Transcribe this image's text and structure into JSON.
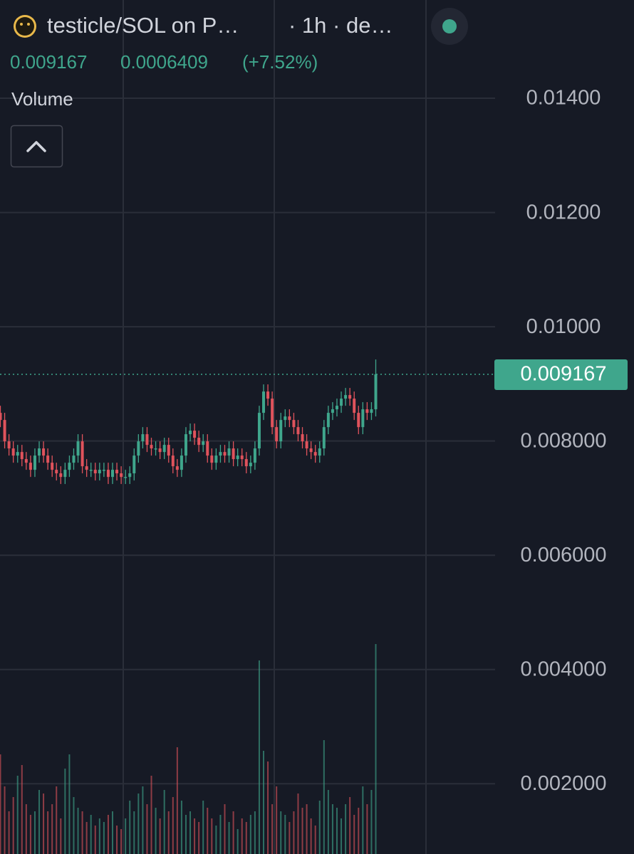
{
  "chart_data": {
    "type": "candlestick",
    "title": "testicle/SOL on P…",
    "subtitle": "· 1h · de…",
    "volume_label": "Volume",
    "change": 0.0006409,
    "change_percent": {
      "value": 7.52,
      "label": "(+7.52%)"
    },
    "up_color": "#3fa68c",
    "down_color": "#e0535c",
    "grid": true,
    "ylim": [
      0.00077,
      0.01572
    ],
    "yticks": [
      {
        "value": 0.014,
        "label": "0.01400"
      },
      {
        "value": 0.012,
        "label": "0.01200"
      },
      {
        "value": 0.01,
        "label": "0.01000"
      },
      {
        "value": 0.008,
        "label": "0.008000"
      },
      {
        "value": 0.006,
        "label": "0.006000"
      },
      {
        "value": 0.004,
        "label": "0.004000"
      },
      {
        "value": 0.002,
        "label": "0.002000"
      }
    ],
    "open": [
      0.008493,
      0.008368,
      0.007994,
      0.00787,
      0.007745,
      0.007807,
      0.007683,
      0.00762,
      0.007496,
      0.007745,
      0.00787,
      0.007745,
      0.00762,
      0.007496,
      0.007434,
      0.007371,
      0.007496,
      0.00762,
      0.007745,
      0.007994,
      0.007558,
      0.007496,
      0.007496,
      0.007434,
      0.007496,
      0.007496,
      0.007371,
      0.007496,
      0.007434,
      0.007371,
      0.007371,
      0.007434,
      0.007745,
      0.007994,
      0.008119,
      0.007932,
      0.00787,
      0.00787,
      0.007807,
      0.007932,
      0.007745,
      0.007558,
      0.007496,
      0.007745,
      0.008119,
      0.008181,
      0.008057,
      0.007932,
      0.007994,
      0.007745,
      0.00762,
      0.007745,
      0.007807,
      0.007745,
      0.00787,
      0.007683,
      0.007745,
      0.007683,
      0.007558,
      0.00762,
      0.00787,
      0.008493,
      0.008866,
      0.008742,
      0.008243,
      0.007994,
      0.008368,
      0.00843,
      0.008368,
      0.008243,
      0.008119,
      0.007994,
      0.00787,
      0.007807,
      0.007745,
      0.00787,
      0.008243,
      0.008493,
      0.008555,
      0.008617,
      0.008742,
      0.008804,
      0.008742,
      0.008493,
      0.008243,
      0.008555,
      0.008493,
      0.008555
    ],
    "high": [
      0.008617,
      0.008493,
      0.008119,
      0.007994,
      0.007932,
      0.007932,
      0.007807,
      0.007745,
      0.00787,
      0.007994,
      0.007994,
      0.00787,
      0.007745,
      0.00762,
      0.007558,
      0.00762,
      0.007745,
      0.00787,
      0.008119,
      0.008119,
      0.007683,
      0.00762,
      0.00762,
      0.00762,
      0.00762,
      0.00762,
      0.00762,
      0.00762,
      0.007558,
      0.007496,
      0.007558,
      0.00787,
      0.008119,
      0.008243,
      0.008243,
      0.008057,
      0.007994,
      0.007994,
      0.008057,
      0.008057,
      0.00787,
      0.007683,
      0.00787,
      0.008243,
      0.008306,
      0.008306,
      0.008181,
      0.008119,
      0.008119,
      0.00787,
      0.00787,
      0.007932,
      0.007932,
      0.007994,
      0.007994,
      0.00787,
      0.00787,
      0.007807,
      0.007745,
      0.007994,
      0.008617,
      0.008991,
      0.008991,
      0.008866,
      0.008368,
      0.008493,
      0.008555,
      0.008555,
      0.008493,
      0.008368,
      0.008243,
      0.008119,
      0.007994,
      0.007932,
      0.007994,
      0.008368,
      0.008617,
      0.00868,
      0.008742,
      0.008866,
      0.008929,
      0.008929,
      0.008866,
      0.008617,
      0.00868,
      0.00868,
      0.00868,
      0.009427
    ],
    "low": [
      0.008243,
      0.00787,
      0.007745,
      0.00762,
      0.00762,
      0.007558,
      0.007496,
      0.007371,
      0.007371,
      0.00762,
      0.00762,
      0.007496,
      0.007371,
      0.007309,
      0.007247,
      0.007247,
      0.007371,
      0.007496,
      0.00762,
      0.007434,
      0.007371,
      0.007371,
      0.007309,
      0.007309,
      0.007371,
      0.007247,
      0.007247,
      0.007309,
      0.007247,
      0.007247,
      0.007247,
      0.007309,
      0.00762,
      0.00787,
      0.007807,
      0.007745,
      0.007745,
      0.007683,
      0.007683,
      0.00762,
      0.007434,
      0.007371,
      0.007371,
      0.00762,
      0.007994,
      0.007932,
      0.007807,
      0.007807,
      0.00762,
      0.007496,
      0.007496,
      0.00762,
      0.00762,
      0.00762,
      0.007558,
      0.007558,
      0.007558,
      0.007434,
      0.007434,
      0.007496,
      0.007745,
      0.008368,
      0.008617,
      0.008119,
      0.00787,
      0.00787,
      0.008243,
      0.008243,
      0.008119,
      0.007994,
      0.00787,
      0.007745,
      0.007683,
      0.00762,
      0.00762,
      0.007745,
      0.008119,
      0.008368,
      0.00843,
      0.008493,
      0.008617,
      0.008617,
      0.008368,
      0.008119,
      0.008119,
      0.008368,
      0.008368,
      0.00843
    ],
    "close": [
      0.008368,
      0.007994,
      0.00787,
      0.007745,
      0.007807,
      0.007683,
      0.00762,
      0.007496,
      0.007745,
      0.00787,
      0.007745,
      0.00762,
      0.007496,
      0.007434,
      0.007371,
      0.007496,
      0.00762,
      0.007745,
      0.007994,
      0.007558,
      0.007496,
      0.007496,
      0.007434,
      0.007496,
      0.007496,
      0.007371,
      0.007496,
      0.007434,
      0.007371,
      0.007371,
      0.007434,
      0.007745,
      0.007994,
      0.008119,
      0.007932,
      0.00787,
      0.00787,
      0.007807,
      0.007932,
      0.007745,
      0.007558,
      0.007496,
      0.007745,
      0.008119,
      0.008181,
      0.008057,
      0.007932,
      0.007994,
      0.007745,
      0.00762,
      0.007745,
      0.007807,
      0.007745,
      0.00787,
      0.007683,
      0.007745,
      0.007683,
      0.007558,
      0.00762,
      0.00787,
      0.008493,
      0.008866,
      0.008742,
      0.008243,
      0.007994,
      0.008368,
      0.00843,
      0.008368,
      0.008243,
      0.008119,
      0.007994,
      0.00787,
      0.007807,
      0.007745,
      0.00787,
      0.008243,
      0.008493,
      0.008555,
      0.008617,
      0.008742,
      0.008804,
      0.008742,
      0.008493,
      0.008243,
      0.008555,
      0.008493,
      0.008555,
      0.009167
    ],
    "volume": [
      140,
      95,
      60,
      80,
      110,
      125,
      70,
      55,
      60,
      90,
      85,
      60,
      70,
      95,
      50,
      120,
      140,
      80,
      65,
      60,
      45,
      55,
      40,
      50,
      45,
      55,
      60,
      40,
      35,
      50,
      75,
      60,
      85,
      95,
      70,
      110,
      65,
      50,
      90,
      60,
      80,
      150,
      75,
      55,
      60,
      50,
      45,
      75,
      65,
      50,
      40,
      55,
      70,
      45,
      60,
      35,
      50,
      45,
      55,
      60,
      272,
      145,
      130,
      70,
      95,
      60,
      55,
      45,
      60,
      85,
      65,
      70,
      50,
      40,
      75,
      160,
      90,
      70,
      65,
      50,
      70,
      80,
      55,
      65,
      95,
      70,
      90,
      295
    ]
  }
}
